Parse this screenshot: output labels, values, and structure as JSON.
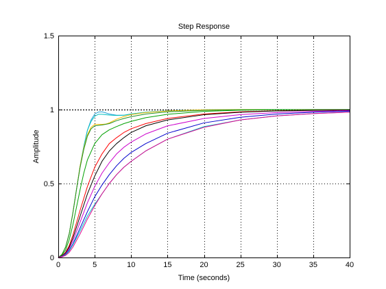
{
  "chart_data": {
    "type": "line",
    "title": "Step Response",
    "xlabel": "Time (seconds)",
    "ylabel": "Amplitude",
    "xlim": [
      0,
      40
    ],
    "ylim": [
      0,
      1.5
    ],
    "x_ticks": [
      0,
      5,
      10,
      15,
      20,
      25,
      30,
      35,
      40
    ],
    "y_ticks": [
      0,
      0.5,
      1,
      1.5
    ],
    "x_tick_labels": [
      "0",
      "5",
      "10",
      "15",
      "20",
      "25",
      "30",
      "35",
      "40"
    ],
    "y_tick_labels": [
      "0",
      "0.5",
      "1",
      "1.5"
    ],
    "grid": true,
    "reference_line": {
      "y": 1,
      "color": "#000000",
      "dashed": true
    },
    "series": [
      {
        "color": "#1f9fd6",
        "points": [
          [
            0,
            0
          ],
          [
            0.5,
            0.02
          ],
          [
            1,
            0.07
          ],
          [
            1.5,
            0.16
          ],
          [
            2,
            0.3
          ],
          [
            2.5,
            0.46
          ],
          [
            3,
            0.62
          ],
          [
            3.5,
            0.75
          ],
          [
            4,
            0.86
          ],
          [
            4.5,
            0.93
          ],
          [
            5,
            0.97
          ],
          [
            5.5,
            0.983
          ],
          [
            6,
            0.985
          ],
          [
            6.5,
            0.978
          ],
          [
            7,
            0.97
          ],
          [
            8,
            0.962
          ],
          [
            9,
            0.962
          ],
          [
            10,
            0.97
          ],
          [
            12,
            0.982
          ],
          [
            15,
            0.992
          ],
          [
            20,
            0.998
          ],
          [
            25,
            1
          ],
          [
            30,
            1
          ],
          [
            40,
            1
          ]
        ]
      },
      {
        "color": "#00bfbf",
        "points": [
          [
            0,
            0
          ],
          [
            0.5,
            0.02
          ],
          [
            1,
            0.07
          ],
          [
            1.5,
            0.16
          ],
          [
            2,
            0.3
          ],
          [
            2.5,
            0.46
          ],
          [
            3,
            0.62
          ],
          [
            3.5,
            0.75
          ],
          [
            4,
            0.86
          ],
          [
            4.5,
            0.92
          ],
          [
            5,
            0.955
          ],
          [
            5.5,
            0.968
          ],
          [
            6,
            0.968
          ],
          [
            7,
            0.963
          ],
          [
            8,
            0.96
          ],
          [
            9,
            0.962
          ],
          [
            10,
            0.97
          ],
          [
            12,
            0.982
          ],
          [
            15,
            0.992
          ],
          [
            20,
            0.998
          ],
          [
            25,
            1
          ],
          [
            30,
            1
          ],
          [
            40,
            1
          ]
        ]
      },
      {
        "color": "#ffbf00",
        "points": [
          [
            0,
            0
          ],
          [
            0.5,
            0.02
          ],
          [
            1,
            0.07
          ],
          [
            1.5,
            0.16
          ],
          [
            2,
            0.3
          ],
          [
            2.5,
            0.46
          ],
          [
            3,
            0.62
          ],
          [
            3.5,
            0.74
          ],
          [
            4,
            0.83
          ],
          [
            4.5,
            0.88
          ],
          [
            5,
            0.9
          ],
          [
            5.5,
            0.9
          ],
          [
            6,
            0.9
          ],
          [
            6.5,
            0.902
          ],
          [
            7,
            0.91
          ],
          [
            8,
            0.935
          ],
          [
            9,
            0.953
          ],
          [
            10,
            0.966
          ],
          [
            12,
            0.98
          ],
          [
            15,
            0.991
          ],
          [
            20,
            0.998
          ],
          [
            25,
            1
          ],
          [
            30,
            1
          ],
          [
            40,
            1
          ]
        ]
      },
      {
        "color": "#208f20",
        "points": [
          [
            0,
            0
          ],
          [
            0.5,
            0.02
          ],
          [
            1,
            0.07
          ],
          [
            1.5,
            0.16
          ],
          [
            2,
            0.3
          ],
          [
            2.5,
            0.46
          ],
          [
            3,
            0.61
          ],
          [
            3.5,
            0.73
          ],
          [
            4,
            0.82
          ],
          [
            4.5,
            0.87
          ],
          [
            5,
            0.89
          ],
          [
            5.5,
            0.893
          ],
          [
            6,
            0.896
          ],
          [
            7,
            0.905
          ],
          [
            8,
            0.925
          ],
          [
            9,
            0.94
          ],
          [
            10,
            0.952
          ],
          [
            12,
            0.97
          ],
          [
            15,
            0.985
          ],
          [
            20,
            0.995
          ],
          [
            25,
            0.999
          ],
          [
            30,
            1
          ],
          [
            40,
            1
          ]
        ]
      },
      {
        "color": "#00a000",
        "points": [
          [
            0,
            0
          ],
          [
            0.5,
            0.015
          ],
          [
            1,
            0.05
          ],
          [
            1.5,
            0.12
          ],
          [
            2,
            0.22
          ],
          [
            2.5,
            0.34
          ],
          [
            3,
            0.46
          ],
          [
            3.5,
            0.57
          ],
          [
            4,
            0.66
          ],
          [
            5,
            0.77
          ],
          [
            6,
            0.83
          ],
          [
            7,
            0.863
          ],
          [
            8,
            0.885
          ],
          [
            9,
            0.905
          ],
          [
            10,
            0.92
          ],
          [
            12,
            0.945
          ],
          [
            15,
            0.968
          ],
          [
            20,
            0.988
          ],
          [
            25,
            0.996
          ],
          [
            30,
            0.999
          ],
          [
            40,
            1
          ]
        ]
      },
      {
        "color": "#ff0000",
        "points": [
          [
            0,
            0
          ],
          [
            0.5,
            0.01
          ],
          [
            1,
            0.035
          ],
          [
            1.5,
            0.08
          ],
          [
            2,
            0.15
          ],
          [
            3,
            0.32
          ],
          [
            4,
            0.48
          ],
          [
            5,
            0.61
          ],
          [
            6,
            0.7
          ],
          [
            7,
            0.77
          ],
          [
            8,
            0.81
          ],
          [
            9,
            0.845
          ],
          [
            10,
            0.87
          ],
          [
            12,
            0.905
          ],
          [
            15,
            0.94
          ],
          [
            20,
            0.97
          ],
          [
            25,
            0.985
          ],
          [
            30,
            0.992
          ],
          [
            35,
            0.996
          ],
          [
            40,
            0.998
          ]
        ]
      },
      {
        "color": "#000000",
        "points": [
          [
            0,
            0
          ],
          [
            0.5,
            0.01
          ],
          [
            1,
            0.03
          ],
          [
            1.5,
            0.07
          ],
          [
            2,
            0.13
          ],
          [
            3,
            0.28
          ],
          [
            4,
            0.43
          ],
          [
            5,
            0.55
          ],
          [
            6,
            0.65
          ],
          [
            7,
            0.72
          ],
          [
            8,
            0.77
          ],
          [
            9,
            0.81
          ],
          [
            10,
            0.845
          ],
          [
            12,
            0.89
          ],
          [
            15,
            0.93
          ],
          [
            20,
            0.965
          ],
          [
            25,
            0.982
          ],
          [
            30,
            0.991
          ],
          [
            35,
            0.995
          ],
          [
            40,
            0.997
          ]
        ]
      },
      {
        "color": "#cc00cc",
        "points": [
          [
            0,
            0
          ],
          [
            0.5,
            0.008
          ],
          [
            1,
            0.025
          ],
          [
            1.5,
            0.06
          ],
          [
            2,
            0.11
          ],
          [
            3,
            0.24
          ],
          [
            4,
            0.37
          ],
          [
            5,
            0.48
          ],
          [
            6,
            0.57
          ],
          [
            7,
            0.64
          ],
          [
            8,
            0.7
          ],
          [
            9,
            0.745
          ],
          [
            10,
            0.78
          ],
          [
            12,
            0.835
          ],
          [
            15,
            0.89
          ],
          [
            20,
            0.94
          ],
          [
            25,
            0.966
          ],
          [
            30,
            0.98
          ],
          [
            35,
            0.988
          ],
          [
            40,
            0.993
          ]
        ]
      },
      {
        "color": "#0000cc",
        "points": [
          [
            0,
            0
          ],
          [
            0.5,
            0.006
          ],
          [
            1,
            0.02
          ],
          [
            1.5,
            0.05
          ],
          [
            2,
            0.09
          ],
          [
            3,
            0.2
          ],
          [
            4,
            0.31
          ],
          [
            5,
            0.41
          ],
          [
            6,
            0.49
          ],
          [
            7,
            0.56
          ],
          [
            8,
            0.62
          ],
          [
            9,
            0.67
          ],
          [
            10,
            0.71
          ],
          [
            12,
            0.77
          ],
          [
            15,
            0.84
          ],
          [
            20,
            0.91
          ],
          [
            25,
            0.948
          ],
          [
            30,
            0.97
          ],
          [
            35,
            0.982
          ],
          [
            40,
            0.989
          ]
        ]
      },
      {
        "color": "#00c8c8",
        "points": [
          [
            0,
            0
          ],
          [
            0.5,
            0.005
          ],
          [
            1,
            0.018
          ],
          [
            1.5,
            0.045
          ],
          [
            2,
            0.085
          ],
          [
            3,
            0.18
          ],
          [
            4,
            0.28
          ],
          [
            5,
            0.36
          ],
          [
            6,
            0.43
          ],
          [
            7,
            0.5
          ],
          [
            8,
            0.56
          ],
          [
            9,
            0.61
          ],
          [
            10,
            0.65
          ],
          [
            12,
            0.72
          ],
          [
            15,
            0.8
          ],
          [
            20,
            0.885
          ],
          [
            25,
            0.93
          ],
          [
            30,
            0.958
          ],
          [
            35,
            0.973
          ],
          [
            40,
            0.983
          ]
        ]
      },
      {
        "color": "#e0008c",
        "points": [
          [
            0,
            0
          ],
          [
            0.5,
            0.004
          ],
          [
            1,
            0.014
          ],
          [
            1.5,
            0.035
          ],
          [
            2,
            0.07
          ],
          [
            3,
            0.16
          ],
          [
            4,
            0.26
          ],
          [
            5,
            0.35
          ],
          [
            6,
            0.43
          ],
          [
            7,
            0.5
          ],
          [
            8,
            0.56
          ],
          [
            9,
            0.61
          ],
          [
            10,
            0.65
          ],
          [
            12,
            0.72
          ],
          [
            15,
            0.8
          ],
          [
            20,
            0.88
          ],
          [
            25,
            0.93
          ],
          [
            30,
            0.957
          ],
          [
            35,
            0.973
          ],
          [
            40,
            0.982
          ]
        ]
      }
    ]
  }
}
